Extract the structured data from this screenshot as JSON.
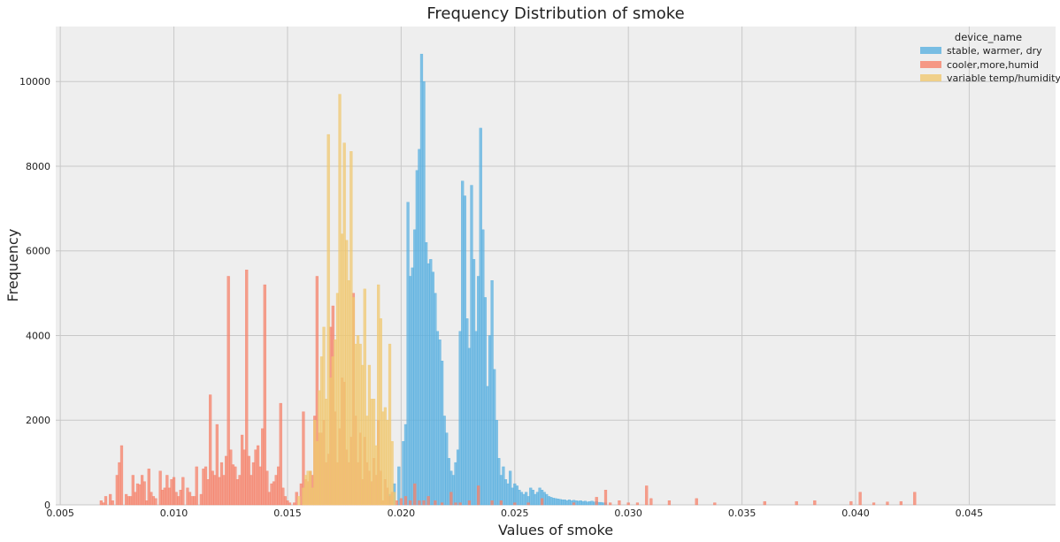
{
  "chart_data": {
    "type": "bar",
    "title": "Frequency Distribution of smoke",
    "xlabel": "Values of smoke",
    "ylabel": "Frequency",
    "xlim": [
      0.0048,
      0.0488
    ],
    "ylim": [
      0,
      11300
    ],
    "xticks": [
      "0.005",
      "0.010",
      "0.015",
      "0.020",
      "0.025",
      "0.030",
      "0.035",
      "0.040",
      "0.045"
    ],
    "yticks": [
      "0",
      "2000",
      "4000",
      "6000",
      "8000",
      "10000"
    ],
    "grid": true,
    "legend_position": "top-right",
    "legend_title": "device_name",
    "bin_width": 0.00011,
    "series": [
      {
        "name": "stable, warmer, dry",
        "color": "#5ab0e0",
        "points": [
          [
            0.0195,
            250
          ],
          [
            0.0197,
            500
          ],
          [
            0.0199,
            900
          ],
          [
            0.0201,
            1500
          ],
          [
            0.0202,
            1900
          ],
          [
            0.0203,
            7150
          ],
          [
            0.0204,
            5400
          ],
          [
            0.0205,
            5600
          ],
          [
            0.0206,
            6500
          ],
          [
            0.0207,
            7900
          ],
          [
            0.0208,
            8400
          ],
          [
            0.0209,
            10650
          ],
          [
            0.021,
            10000
          ],
          [
            0.0211,
            6200
          ],
          [
            0.0212,
            5700
          ],
          [
            0.0213,
            5800
          ],
          [
            0.0214,
            5500
          ],
          [
            0.0215,
            5000
          ],
          [
            0.0216,
            4100
          ],
          [
            0.0217,
            3900
          ],
          [
            0.0218,
            3400
          ],
          [
            0.0219,
            2100
          ],
          [
            0.022,
            1700
          ],
          [
            0.0221,
            1100
          ],
          [
            0.0222,
            800
          ],
          [
            0.0223,
            700
          ],
          [
            0.0224,
            1000
          ],
          [
            0.0225,
            1300
          ],
          [
            0.0226,
            4100
          ],
          [
            0.0227,
            7650
          ],
          [
            0.0228,
            7300
          ],
          [
            0.0229,
            4400
          ],
          [
            0.023,
            3700
          ],
          [
            0.0231,
            7550
          ],
          [
            0.0232,
            5800
          ],
          [
            0.0233,
            4100
          ],
          [
            0.0234,
            5400
          ],
          [
            0.0235,
            8900
          ],
          [
            0.0236,
            6500
          ],
          [
            0.0237,
            4900
          ],
          [
            0.0238,
            2800
          ],
          [
            0.0239,
            4000
          ],
          [
            0.024,
            5300
          ],
          [
            0.0241,
            3200
          ],
          [
            0.0242,
            2000
          ],
          [
            0.0243,
            1100
          ],
          [
            0.0244,
            700
          ],
          [
            0.0245,
            900
          ],
          [
            0.0246,
            600
          ],
          [
            0.0247,
            500
          ],
          [
            0.0248,
            800
          ],
          [
            0.0249,
            400
          ],
          [
            0.025,
            500
          ],
          [
            0.0251,
            450
          ],
          [
            0.0252,
            350
          ],
          [
            0.0253,
            300
          ],
          [
            0.0254,
            250
          ],
          [
            0.0255,
            300
          ],
          [
            0.0256,
            200
          ],
          [
            0.0257,
            400
          ],
          [
            0.0258,
            350
          ],
          [
            0.0259,
            250
          ],
          [
            0.026,
            300
          ],
          [
            0.0261,
            400
          ],
          [
            0.0262,
            350
          ],
          [
            0.0263,
            300
          ],
          [
            0.0264,
            250
          ],
          [
            0.0265,
            200
          ],
          [
            0.0266,
            180
          ],
          [
            0.0267,
            160
          ],
          [
            0.0268,
            150
          ],
          [
            0.0269,
            140
          ],
          [
            0.027,
            130
          ],
          [
            0.0271,
            120
          ],
          [
            0.0272,
            120
          ],
          [
            0.0273,
            100
          ],
          [
            0.0274,
            120
          ],
          [
            0.0275,
            100
          ],
          [
            0.0276,
            110
          ],
          [
            0.0277,
            100
          ],
          [
            0.0278,
            90
          ],
          [
            0.0279,
            100
          ],
          [
            0.028,
            80
          ],
          [
            0.0281,
            90
          ],
          [
            0.0282,
            70
          ],
          [
            0.0283,
            80
          ],
          [
            0.0284,
            90
          ],
          [
            0.0285,
            70
          ],
          [
            0.0286,
            80
          ],
          [
            0.0287,
            60
          ],
          [
            0.0288,
            60
          ],
          [
            0.0289,
            50
          ],
          [
            0.029,
            50
          ]
        ]
      },
      {
        "name": "cooler,more,humid",
        "color": "#f6826a",
        "points": [
          [
            0.0068,
            100
          ],
          [
            0.0069,
            50
          ],
          [
            0.007,
            200
          ],
          [
            0.0072,
            250
          ],
          [
            0.0073,
            100
          ],
          [
            0.0075,
            700
          ],
          [
            0.0076,
            1000
          ],
          [
            0.0077,
            1400
          ],
          [
            0.0079,
            250
          ],
          [
            0.008,
            200
          ],
          [
            0.0081,
            200
          ],
          [
            0.0082,
            700
          ],
          [
            0.0083,
            300
          ],
          [
            0.0084,
            500
          ],
          [
            0.0085,
            480
          ],
          [
            0.0086,
            700
          ],
          [
            0.0087,
            550
          ],
          [
            0.0088,
            100
          ],
          [
            0.0089,
            850
          ],
          [
            0.009,
            300
          ],
          [
            0.0091,
            200
          ],
          [
            0.0092,
            150
          ],
          [
            0.0094,
            800
          ],
          [
            0.0095,
            350
          ],
          [
            0.0096,
            400
          ],
          [
            0.0097,
            700
          ],
          [
            0.0098,
            400
          ],
          [
            0.0099,
            600
          ],
          [
            0.01,
            650
          ],
          [
            0.0101,
            300
          ],
          [
            0.0102,
            200
          ],
          [
            0.0103,
            350
          ],
          [
            0.0104,
            650
          ],
          [
            0.0106,
            400
          ],
          [
            0.0107,
            300
          ],
          [
            0.0108,
            200
          ],
          [
            0.0109,
            200
          ],
          [
            0.011,
            900
          ],
          [
            0.0112,
            250
          ],
          [
            0.0113,
            850
          ],
          [
            0.0114,
            900
          ],
          [
            0.0115,
            600
          ],
          [
            0.0116,
            2600
          ],
          [
            0.0117,
            800
          ],
          [
            0.0118,
            700
          ],
          [
            0.0119,
            1900
          ],
          [
            0.012,
            650
          ],
          [
            0.0121,
            1000
          ],
          [
            0.0122,
            700
          ],
          [
            0.0123,
            1150
          ],
          [
            0.0124,
            5400
          ],
          [
            0.0125,
            1300
          ],
          [
            0.0126,
            950
          ],
          [
            0.0127,
            900
          ],
          [
            0.0128,
            600
          ],
          [
            0.0129,
            700
          ],
          [
            0.013,
            1650
          ],
          [
            0.0131,
            1300
          ],
          [
            0.0132,
            5550
          ],
          [
            0.0133,
            1150
          ],
          [
            0.0134,
            700
          ],
          [
            0.0135,
            1000
          ],
          [
            0.0136,
            1300
          ],
          [
            0.0137,
            1400
          ],
          [
            0.0138,
            900
          ],
          [
            0.0139,
            1800
          ],
          [
            0.014,
            5200
          ],
          [
            0.0141,
            800
          ],
          [
            0.0142,
            300
          ],
          [
            0.0143,
            500
          ],
          [
            0.0144,
            550
          ],
          [
            0.0145,
            700
          ],
          [
            0.0146,
            900
          ],
          [
            0.0147,
            2400
          ],
          [
            0.0148,
            400
          ],
          [
            0.0149,
            200
          ],
          [
            0.015,
            100
          ],
          [
            0.0151,
            50
          ],
          [
            0.0153,
            50
          ],
          [
            0.0154,
            300
          ],
          [
            0.0156,
            500
          ],
          [
            0.0157,
            2200
          ],
          [
            0.0158,
            600
          ],
          [
            0.0159,
            550
          ],
          [
            0.016,
            800
          ],
          [
            0.0161,
            700
          ],
          [
            0.0162,
            2100
          ],
          [
            0.0163,
            5400
          ],
          [
            0.0164,
            1700
          ],
          [
            0.0165,
            1700
          ],
          [
            0.0166,
            2000
          ],
          [
            0.0167,
            1000
          ],
          [
            0.0168,
            1200
          ],
          [
            0.0169,
            4200
          ],
          [
            0.017,
            4700
          ],
          [
            0.0171,
            2200
          ],
          [
            0.0172,
            1000
          ],
          [
            0.0173,
            1800
          ],
          [
            0.0174,
            3000
          ],
          [
            0.0175,
            2900
          ],
          [
            0.0176,
            1300
          ],
          [
            0.0177,
            1000
          ],
          [
            0.0178,
            1600
          ],
          [
            0.0179,
            5000
          ],
          [
            0.018,
            2100
          ],
          [
            0.0181,
            1000
          ],
          [
            0.0182,
            1700
          ],
          [
            0.0183,
            600
          ],
          [
            0.0184,
            1600
          ],
          [
            0.0185,
            1000
          ],
          [
            0.0186,
            800
          ],
          [
            0.0187,
            550
          ],
          [
            0.0188,
            1100
          ],
          [
            0.0189,
            700
          ],
          [
            0.019,
            2000
          ],
          [
            0.0191,
            800
          ],
          [
            0.0192,
            100
          ],
          [
            0.0193,
            600
          ],
          [
            0.0194,
            400
          ],
          [
            0.0195,
            200
          ],
          [
            0.0196,
            300
          ],
          [
            0.0198,
            100
          ],
          [
            0.02,
            150
          ],
          [
            0.0202,
            200
          ],
          [
            0.0204,
            100
          ],
          [
            0.0206,
            500
          ],
          [
            0.0208,
            100
          ],
          [
            0.021,
            100
          ],
          [
            0.0212,
            200
          ],
          [
            0.0215,
            100
          ],
          [
            0.0218,
            50
          ],
          [
            0.0222,
            300
          ],
          [
            0.0224,
            50
          ],
          [
            0.0226,
            50
          ],
          [
            0.023,
            100
          ],
          [
            0.0234,
            450
          ],
          [
            0.024,
            100
          ],
          [
            0.0244,
            100
          ],
          [
            0.025,
            50
          ],
          [
            0.0256,
            50
          ],
          [
            0.0262,
            150
          ],
          [
            0.0276,
            50
          ],
          [
            0.0286,
            180
          ],
          [
            0.029,
            350
          ],
          [
            0.0292,
            50
          ],
          [
            0.0296,
            100
          ],
          [
            0.03,
            50
          ],
          [
            0.0304,
            50
          ],
          [
            0.0308,
            450
          ],
          [
            0.031,
            150
          ],
          [
            0.0318,
            100
          ],
          [
            0.033,
            150
          ],
          [
            0.0338,
            50
          ],
          [
            0.036,
            80
          ],
          [
            0.0374,
            80
          ],
          [
            0.0382,
            100
          ],
          [
            0.0398,
            80
          ],
          [
            0.0402,
            300
          ],
          [
            0.0408,
            50
          ],
          [
            0.0414,
            70
          ],
          [
            0.042,
            80
          ],
          [
            0.0426,
            300
          ]
        ]
      },
      {
        "name": "variable temp/humidity",
        "color": "#f0c870",
        "points": [
          [
            0.0155,
            200
          ],
          [
            0.0157,
            400
          ],
          [
            0.0158,
            700
          ],
          [
            0.0159,
            800
          ],
          [
            0.016,
            800
          ],
          [
            0.0161,
            400
          ],
          [
            0.0162,
            2000
          ],
          [
            0.0163,
            1500
          ],
          [
            0.0164,
            2700
          ],
          [
            0.0165,
            3500
          ],
          [
            0.0166,
            4200
          ],
          [
            0.0167,
            2500
          ],
          [
            0.0168,
            8750
          ],
          [
            0.0169,
            3000
          ],
          [
            0.017,
            3500
          ],
          [
            0.0171,
            3900
          ],
          [
            0.0172,
            5000
          ],
          [
            0.0173,
            9700
          ],
          [
            0.0174,
            6400
          ],
          [
            0.0175,
            8550
          ],
          [
            0.0176,
            6250
          ],
          [
            0.0177,
            5300
          ],
          [
            0.0178,
            8350
          ],
          [
            0.0179,
            4900
          ],
          [
            0.018,
            3800
          ],
          [
            0.0181,
            4000
          ],
          [
            0.0182,
            3800
          ],
          [
            0.0183,
            3300
          ],
          [
            0.0184,
            5100
          ],
          [
            0.0185,
            2100
          ],
          [
            0.0186,
            3300
          ],
          [
            0.0187,
            2500
          ],
          [
            0.0188,
            2500
          ],
          [
            0.0189,
            1400
          ],
          [
            0.019,
            5200
          ],
          [
            0.0191,
            4400
          ],
          [
            0.0192,
            2200
          ],
          [
            0.0193,
            2300
          ],
          [
            0.0194,
            2000
          ],
          [
            0.0195,
            3800
          ],
          [
            0.0196,
            1500
          ],
          [
            0.0197,
            300
          ]
        ]
      }
    ]
  }
}
